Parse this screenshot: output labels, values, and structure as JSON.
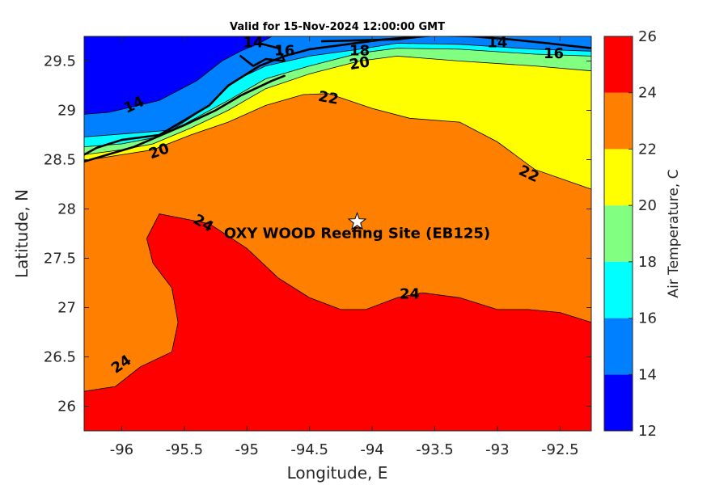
{
  "chart_data": {
    "type": "filled-contour-map",
    "title": "Valid for 15-Nov-2024 12:00:00 GMT",
    "xlabel": "Longitude, E",
    "ylabel": "Latitude, N",
    "xlim": [
      -96.3,
      -92.25
    ],
    "ylim": [
      25.75,
      29.75
    ],
    "xticks": [
      -96,
      -95.5,
      -95,
      -94.5,
      -94,
      -93.5,
      -93,
      -92.5
    ],
    "yticks": [
      26,
      26.5,
      27,
      27.5,
      28,
      28.5,
      29,
      29.5
    ],
    "colorbar": {
      "label": "Air Temperature, C",
      "levels": [
        12,
        14,
        16,
        18,
        20,
        22,
        24,
        26
      ],
      "ticks": [
        12,
        14,
        16,
        18,
        20,
        22,
        24,
        26
      ],
      "colors": [
        "#0000ff",
        "#0080ff",
        "#00ffff",
        "#80ff80",
        "#ffff00",
        "#ff8000",
        "#ff0000",
        "#800000"
      ]
    },
    "bands": [
      {
        "from": 12,
        "to": 14,
        "color": "#0000ff",
        "boundary": [
          [
            -96.3,
            29.75
          ],
          [
            -96.3,
            28.96
          ],
          [
            -96.1,
            28.98
          ],
          [
            -95.7,
            29.1
          ],
          [
            -95.4,
            29.3
          ],
          [
            -95.2,
            29.5
          ],
          [
            -95.05,
            29.6
          ],
          [
            -94.9,
            29.68
          ],
          [
            -94.8,
            29.75
          ]
        ]
      },
      {
        "from": 14,
        "to": 16,
        "color": "#0080ff",
        "boundary": [
          [
            -96.3,
            29.75
          ],
          [
            -96.3,
            28.73
          ],
          [
            -96.0,
            28.76
          ],
          [
            -95.6,
            28.8
          ],
          [
            -95.3,
            29.05
          ],
          [
            -95.1,
            29.3
          ],
          [
            -94.85,
            29.45
          ],
          [
            -94.5,
            29.55
          ],
          [
            -94.1,
            29.62
          ],
          [
            -93.8,
            29.68
          ],
          [
            -93.3,
            29.67
          ],
          [
            -92.7,
            29.62
          ],
          [
            -92.25,
            29.6
          ],
          [
            -92.25,
            29.75
          ]
        ]
      },
      {
        "from": 16,
        "to": 18,
        "color": "#00ffff",
        "boundary": [
          [
            -96.3,
            29.75
          ],
          [
            -96.3,
            28.63
          ],
          [
            -96.0,
            28.66
          ],
          [
            -95.75,
            28.72
          ],
          [
            -95.5,
            28.86
          ],
          [
            -95.15,
            29.1
          ],
          [
            -94.85,
            29.32
          ],
          [
            -94.5,
            29.45
          ],
          [
            -94.1,
            29.58
          ],
          [
            -93.8,
            29.63
          ],
          [
            -93.3,
            29.62
          ],
          [
            -92.7,
            29.57
          ],
          [
            -92.25,
            29.55
          ],
          [
            -92.25,
            29.75
          ]
        ]
      },
      {
        "from": 18,
        "to": 20,
        "color": "#80ff80",
        "boundary": [
          [
            -96.3,
            29.75
          ],
          [
            -96.3,
            28.55
          ],
          [
            -96.0,
            28.6
          ],
          [
            -95.75,
            28.66
          ],
          [
            -95.45,
            28.82
          ],
          [
            -95.15,
            29.0
          ],
          [
            -94.85,
            29.22
          ],
          [
            -94.5,
            29.37
          ],
          [
            -94.1,
            29.5
          ],
          [
            -93.8,
            29.55
          ],
          [
            -93.3,
            29.5
          ],
          [
            -92.7,
            29.45
          ],
          [
            -92.25,
            29.4
          ],
          [
            -92.25,
            29.75
          ]
        ]
      },
      {
        "from": 20,
        "to": 22,
        "color": "#ffff00",
        "boundary": [
          [
            -96.3,
            29.75
          ],
          [
            -96.3,
            28.49
          ],
          [
            -96.0,
            28.55
          ],
          [
            -95.75,
            28.6
          ],
          [
            -95.45,
            28.75
          ],
          [
            -95.15,
            28.88
          ],
          [
            -94.85,
            29.05
          ],
          [
            -94.55,
            29.16
          ],
          [
            -94.35,
            29.17
          ],
          [
            -94.0,
            29.02
          ],
          [
            -93.7,
            28.92
          ],
          [
            -93.3,
            28.88
          ],
          [
            -93.0,
            28.68
          ],
          [
            -92.7,
            28.4
          ],
          [
            -92.25,
            28.2
          ],
          [
            -92.25,
            29.75
          ]
        ]
      },
      {
        "from": 22,
        "to": 24,
        "color": "#ff8000",
        "boundary": [
          [
            -96.3,
            29.75
          ],
          [
            -96.3,
            25.75
          ],
          [
            -92.25,
            25.75
          ],
          [
            -92.25,
            29.75
          ]
        ]
      },
      {
        "from": 24,
        "to": 26,
        "color": "#ff0000",
        "boundary": [
          [
            -96.3,
            25.75
          ],
          [
            -96.3,
            26.15
          ],
          [
            -96.05,
            26.2
          ],
          [
            -95.85,
            26.4
          ],
          [
            -95.6,
            26.55
          ],
          [
            -95.55,
            26.85
          ],
          [
            -95.6,
            27.2
          ],
          [
            -95.75,
            27.45
          ],
          [
            -95.8,
            27.7
          ],
          [
            -95.7,
            27.95
          ],
          [
            -95.5,
            27.9
          ],
          [
            -95.3,
            27.85
          ],
          [
            -95.0,
            27.6
          ],
          [
            -94.75,
            27.3
          ],
          [
            -94.5,
            27.1
          ],
          [
            -94.25,
            26.98
          ],
          [
            -94.05,
            26.98
          ],
          [
            -93.8,
            27.1
          ],
          [
            -93.6,
            27.15
          ],
          [
            -93.3,
            27.1
          ],
          [
            -93.0,
            26.98
          ],
          [
            -92.75,
            26.98
          ],
          [
            -92.5,
            26.95
          ],
          [
            -92.25,
            26.85
          ],
          [
            -92.25,
            25.75
          ]
        ]
      }
    ],
    "contour_labels": [
      {
        "text": "14",
        "lon": -94.95,
        "lat": 29.68,
        "angle": 0
      },
      {
        "text": "14",
        "lon": -95.9,
        "lat": 29.05,
        "angle": -25
      },
      {
        "text": "14",
        "lon": -93.0,
        "lat": 29.68,
        "angle": 0
      },
      {
        "text": "16",
        "lon": -94.7,
        "lat": 29.6,
        "angle": 0
      },
      {
        "text": "16",
        "lon": -92.55,
        "lat": 29.57,
        "angle": 0
      },
      {
        "text": "18",
        "lon": -94.1,
        "lat": 29.6,
        "angle": 0
      },
      {
        "text": "20",
        "lon": -94.1,
        "lat": 29.47,
        "angle": -10
      },
      {
        "text": "20",
        "lon": -95.7,
        "lat": 28.58,
        "angle": -20
      },
      {
        "text": "22",
        "lon": -94.35,
        "lat": 29.12,
        "angle": 10
      },
      {
        "text": "22",
        "lon": -92.75,
        "lat": 28.35,
        "angle": 25
      },
      {
        "text": "24",
        "lon": -95.35,
        "lat": 27.85,
        "angle": 30
      },
      {
        "text": "24",
        "lon": -93.7,
        "lat": 27.13,
        "angle": 0
      },
      {
        "text": "24",
        "lon": -96.0,
        "lat": 26.42,
        "angle": -35
      }
    ],
    "coastline": [
      [
        [
          -96.3,
          28.48
        ],
        [
          -95.9,
          28.63
        ],
        [
          -95.5,
          28.85
        ],
        [
          -95.25,
          29.0
        ],
        [
          -95.05,
          29.15
        ],
        [
          -94.8,
          29.3
        ],
        [
          -94.7,
          29.35
        ]
      ],
      [
        [
          -96.3,
          28.55
        ],
        [
          -96.2,
          28.62
        ],
        [
          -96.0,
          28.7
        ],
        [
          -95.7,
          28.75
        ],
        [
          -95.5,
          28.9
        ],
        [
          -95.3,
          29.05
        ],
        [
          -95.15,
          29.25
        ],
        [
          -94.9,
          29.45
        ],
        [
          -94.7,
          29.55
        ],
        [
          -94.5,
          29.62
        ],
        [
          -94.2,
          29.67
        ],
        [
          -93.9,
          29.72
        ],
        [
          -93.5,
          29.76
        ],
        [
          -93.2,
          29.75
        ],
        [
          -92.9,
          29.72
        ],
        [
          -92.6,
          29.68
        ],
        [
          -92.25,
          29.63
        ]
      ],
      [
        [
          -95.05,
          29.55
        ],
        [
          -94.95,
          29.45
        ],
        [
          -94.85,
          29.52
        ],
        [
          -94.7,
          29.5
        ],
        [
          -94.75,
          29.63
        ],
        [
          -94.9,
          29.68
        ]
      ],
      [
        [
          -94.4,
          29.7
        ],
        [
          -93.8,
          29.72
        ],
        [
          -93.6,
          29.75
        ]
      ]
    ],
    "site": {
      "label": "OXY WOOD Reefing Site (EB125)",
      "lon": -94.12,
      "lat": 27.87
    }
  }
}
